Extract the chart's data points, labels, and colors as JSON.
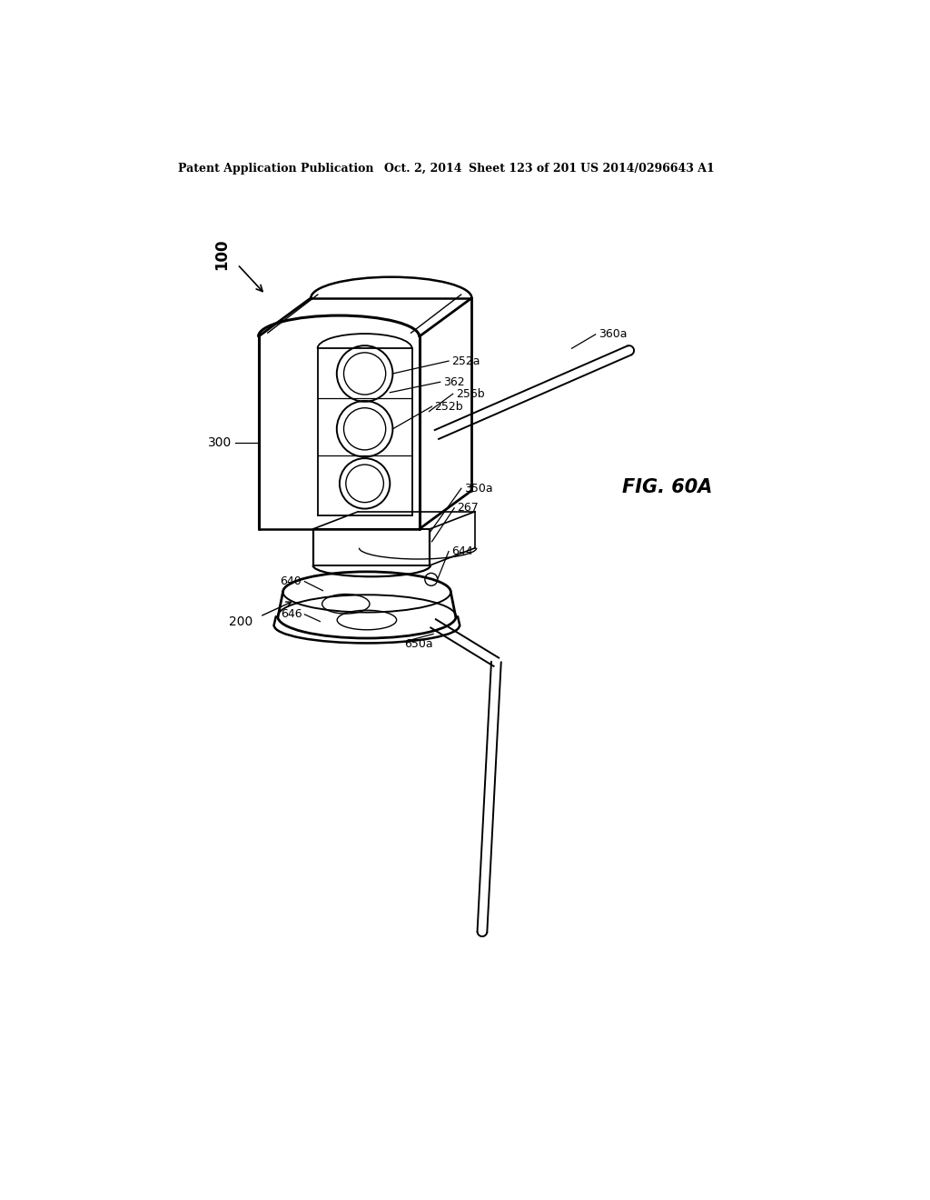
{
  "bg_color": "#ffffff",
  "line_color": "#000000",
  "header_text": "Patent Application Publication",
  "header_date": "Oct. 2, 2014",
  "header_sheet": "Sheet 123 of 201",
  "header_patent": "US 2014/0296643 A1",
  "fig_label": "FIG. 60A",
  "ref_100": "100",
  "ref_200": "200",
  "ref_300": "300",
  "ref_252a": "252a",
  "ref_252b": "252b",
  "ref_256b": "256b",
  "ref_362": "362",
  "ref_350a": "350a",
  "ref_267": "267",
  "ref_360a": "360a",
  "ref_644": "644",
  "ref_640": "640",
  "ref_646": "646",
  "ref_650a": "650a"
}
